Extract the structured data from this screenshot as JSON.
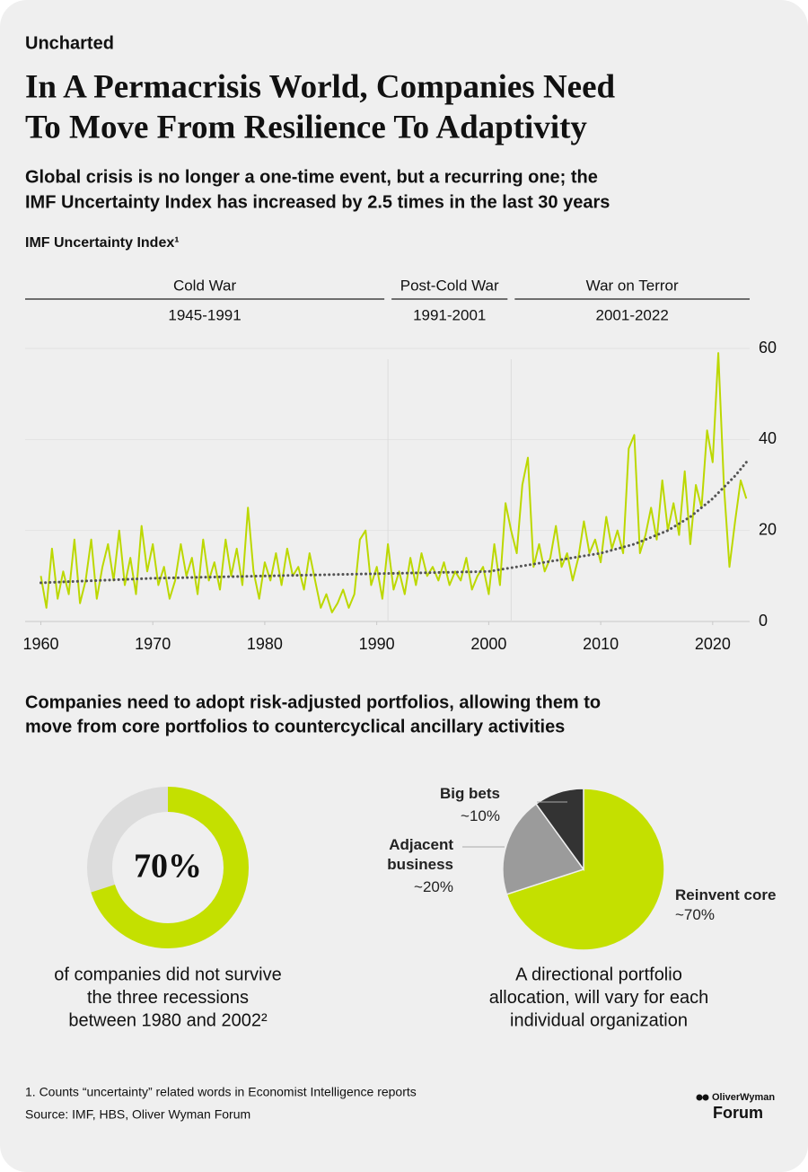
{
  "header": {
    "kicker": "Uncharted",
    "title": [
      "In A Permacrisis World, Companies Need",
      "To Move From Resilience To Adaptivity"
    ],
    "subtitle": [
      "Global crisis is no longer a one-time event, but a recurring one; the",
      "IMF Uncertainty Index has increased by 2.5 times in the last 30 years"
    ]
  },
  "chart_data": [
    {
      "type": "line",
      "title": "IMF Uncertainty Index¹",
      "periods": [
        {
          "name": "Cold War",
          "label": "1945-1991"
        },
        {
          "name": "Post-Cold War",
          "label": "1991-2001"
        },
        {
          "name": "War on Terror",
          "label": "2001-2022"
        }
      ],
      "vlines": [
        1991,
        2002
      ],
      "series": [
        {
          "color": "#bcd800",
          "style": "solid",
          "x": [
            1960,
            1960.5,
            1961,
            1961.5,
            1962,
            1962.5,
            1963,
            1963.5,
            1964,
            1964.5,
            1965,
            1965.5,
            1966,
            1966.5,
            1967,
            1967.5,
            1968,
            1968.5,
            1969,
            1969.5,
            1970,
            1970.5,
            1971,
            1971.5,
            1972,
            1972.5,
            1973,
            1973.5,
            1974,
            1974.5,
            1975,
            1975.5,
            1976,
            1976.5,
            1977,
            1977.5,
            1978,
            1978.5,
            1979,
            1979.5,
            1980,
            1980.5,
            1981,
            1981.5,
            1982,
            1982.5,
            1983,
            1983.5,
            1984,
            1984.5,
            1985,
            1985.5,
            1986,
            1986.5,
            1987,
            1987.5,
            1988,
            1988.5,
            1989,
            1989.5,
            1990,
            1990.5,
            1991,
            1991.5,
            1992,
            1992.5,
            1993,
            1993.5,
            1994,
            1994.5,
            1995,
            1995.5,
            1996,
            1996.5,
            1997,
            1997.5,
            1998,
            1998.5,
            1999,
            1999.5,
            2000,
            2000.5,
            2001,
            2001.5,
            2002,
            2002.5,
            2003,
            2003.5,
            2004,
            2004.5,
            2005,
            2005.5,
            2006,
            2006.5,
            2007,
            2007.5,
            2008,
            2008.5,
            2009,
            2009.5,
            2010,
            2010.5,
            2011,
            2011.5,
            2012,
            2012.5,
            2013,
            2013.5,
            2014,
            2014.5,
            2015,
            2015.5,
            2016,
            2016.5,
            2017,
            2017.5,
            2018,
            2018.5,
            2019,
            2019.5,
            2020,
            2020.5,
            2021,
            2021.5,
            2022,
            2022.5,
            2023
          ],
          "values": [
            10,
            3,
            16,
            5,
            11,
            6,
            18,
            4,
            9,
            18,
            5,
            12,
            17,
            9,
            20,
            8,
            14,
            6,
            21,
            11,
            17,
            8,
            12,
            5,
            9,
            17,
            10,
            14,
            6,
            18,
            9,
            13,
            7,
            18,
            10,
            16,
            8,
            25,
            11,
            5,
            13,
            9,
            15,
            8,
            16,
            10,
            12,
            7,
            15,
            9,
            3,
            6,
            2,
            4,
            7,
            3,
            6,
            18,
            20,
            8,
            12,
            5,
            17,
            7,
            11,
            6,
            14,
            8,
            15,
            10,
            12,
            9,
            13,
            8,
            11,
            9,
            14,
            7,
            10,
            12,
            6,
            17,
            8,
            26,
            20,
            15,
            30,
            36,
            12,
            17,
            11,
            14,
            21,
            12,
            15,
            9,
            14,
            22,
            15,
            18,
            13,
            23,
            16,
            20,
            15,
            38,
            41,
            15,
            19,
            25,
            18,
            31,
            20,
            26,
            19,
            33,
            17,
            30,
            25,
            42,
            35,
            59,
            30,
            12,
            22,
            31,
            27
          ]
        },
        {
          "color": "#555555",
          "style": "dotted",
          "x": [
            1960,
            1970,
            1980,
            1990,
            2000,
            2005,
            2010,
            2013,
            2016,
            2018,
            2020,
            2022,
            2023
          ],
          "values": [
            8.5,
            9.5,
            10,
            10.5,
            11,
            13,
            15,
            17,
            20,
            23,
            27,
            32,
            35
          ]
        }
      ],
      "xlim": [
        1958.6,
        2023.3
      ],
      "xticks": [
        1960,
        1970,
        1980,
        1990,
        2000,
        2010,
        2020
      ],
      "ylim": [
        0,
        60
      ],
      "yticks": [
        0,
        20,
        40,
        60
      ],
      "grid": true
    },
    {
      "type": "donut",
      "values": [
        70
      ],
      "value_labels": [
        "70%"
      ],
      "color": "#c4e000",
      "track_color": "#dcdcdc",
      "caption": [
        "of companies did not survive",
        "the three recessions",
        "between 1980 and 2002²"
      ]
    },
    {
      "type": "pie",
      "categories": [
        "Reinvent core",
        "Adjacent business",
        "Big bets"
      ],
      "values": [
        70,
        20,
        10
      ],
      "value_labels": [
        "~70%",
        "~20%",
        "~10%"
      ],
      "colors": [
        "#c4e000",
        "#9b9b9b",
        "#333333"
      ],
      "caption": [
        "A directional portfolio",
        "allocation, will vary for each",
        "individual organization"
      ]
    }
  ],
  "section_title": [
    "Companies need to adopt risk-adjusted portfolios, allowing them to",
    "move from core portfolios to countercyclical ancillary activities"
  ],
  "footer": {
    "notes": [
      "1. Counts “uncertainty” related words in Economist Intelligence reports",
      "Source: IMF, HBS, Oliver Wyman Forum"
    ],
    "logo": [
      "OliverWyman",
      "Forum"
    ]
  }
}
